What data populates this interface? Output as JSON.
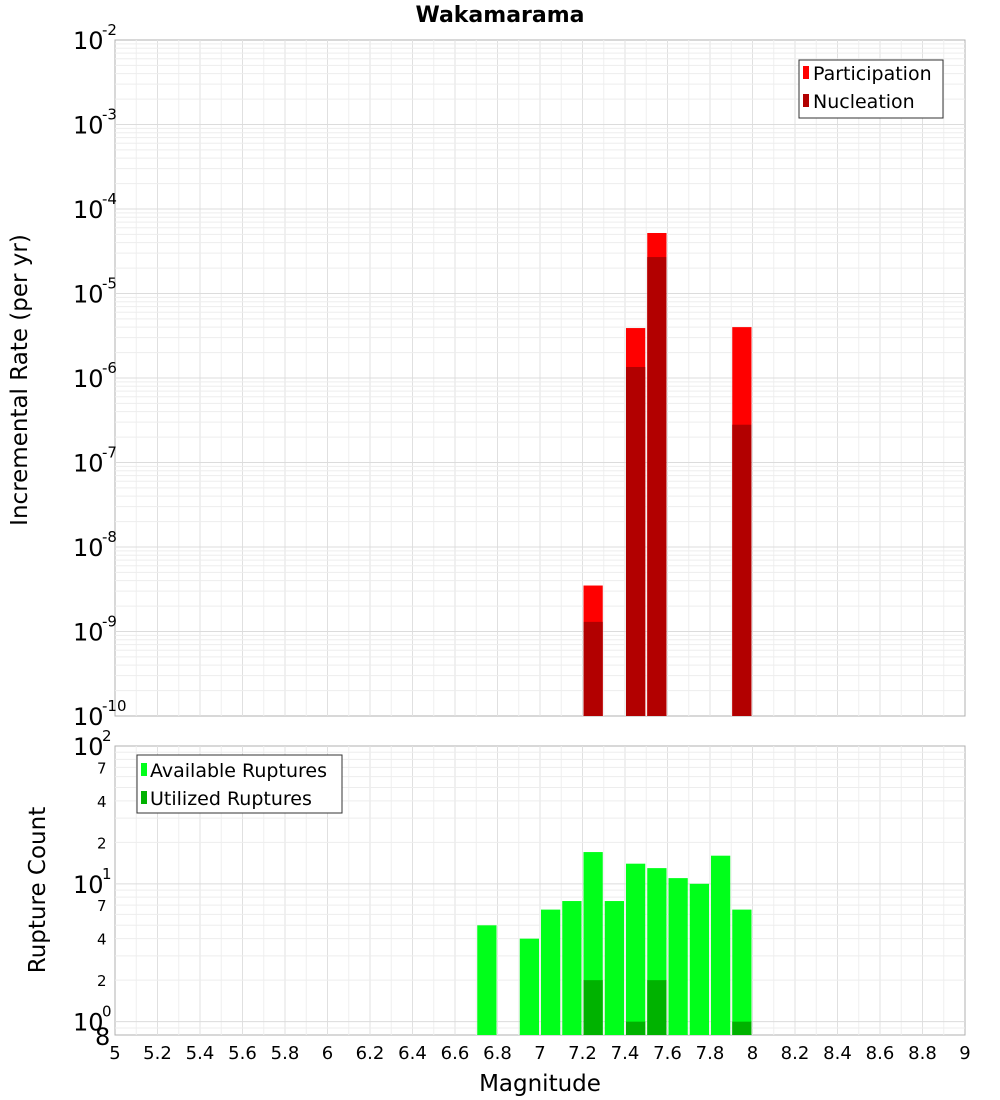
{
  "chart_data": [
    {
      "type": "bar",
      "title": "Wakamarama",
      "ylabel": "Incremental Rate (per yr)",
      "xlabel": "",
      "yscale": "log",
      "ylim": [
        1e-10,
        0.01
      ],
      "xlim": [
        5,
        9
      ],
      "bar_width": 0.1,
      "legend": {
        "position": "top-right",
        "entries": [
          "Participation",
          "Nucleation"
        ]
      },
      "series": [
        {
          "name": "Participation",
          "color": "#ff0000",
          "points": [
            {
              "x": 7.25,
              "y": 3.5e-09
            },
            {
              "x": 7.45,
              "y": 3.9e-06
            },
            {
              "x": 7.55,
              "y": 5.2e-05
            },
            {
              "x": 7.95,
              "y": 4e-06
            }
          ]
        },
        {
          "name": "Nucleation",
          "color": "#b20000",
          "points": [
            {
              "x": 7.25,
              "y": 1.3e-09
            },
            {
              "x": 7.45,
              "y": 1.35e-06
            },
            {
              "x": 7.55,
              "y": 2.7e-05
            },
            {
              "x": 7.95,
              "y": 2.8e-07
            }
          ]
        }
      ],
      "y_ticks": [
        {
          "base": "10",
          "exp": "-10"
        },
        {
          "base": "10",
          "exp": "-9"
        },
        {
          "base": "10",
          "exp": "-8"
        },
        {
          "base": "10",
          "exp": "-7"
        },
        {
          "base": "10",
          "exp": "-6"
        },
        {
          "base": "10",
          "exp": "-5"
        },
        {
          "base": "10",
          "exp": "-4"
        },
        {
          "base": "10",
          "exp": "-3"
        },
        {
          "base": "10",
          "exp": "-2"
        }
      ],
      "grid": true
    },
    {
      "type": "bar",
      "title": "",
      "ylabel": "Rupture Count",
      "xlabel": "Magnitude",
      "yscale": "log",
      "ylim": [
        0.8,
        100
      ],
      "xlim": [
        5,
        9
      ],
      "bar_width": 0.1,
      "legend": {
        "position": "top-left",
        "entries": [
          "Available Ruptures",
          "Utilized Ruptures"
        ]
      },
      "series": [
        {
          "name": "Available Ruptures",
          "color": "#00ff1a",
          "points": [
            {
              "x": 6.75,
              "y": 5
            },
            {
              "x": 6.95,
              "y": 4
            },
            {
              "x": 7.05,
              "y": 6.5
            },
            {
              "x": 7.15,
              "y": 7.5
            },
            {
              "x": 7.25,
              "y": 17
            },
            {
              "x": 7.35,
              "y": 7.5
            },
            {
              "x": 7.45,
              "y": 14
            },
            {
              "x": 7.55,
              "y": 13
            },
            {
              "x": 7.65,
              "y": 11
            },
            {
              "x": 7.75,
              "y": 10
            },
            {
              "x": 7.85,
              "y": 16
            },
            {
              "x": 7.95,
              "y": 6.5
            }
          ]
        },
        {
          "name": "Utilized Ruptures",
          "color": "#00b200",
          "points": [
            {
              "x": 7.25,
              "y": 2
            },
            {
              "x": 7.45,
              "y": 1
            },
            {
              "x": 7.55,
              "y": 2
            },
            {
              "x": 7.95,
              "y": 1
            }
          ]
        }
      ],
      "y_ticks": [
        {
          "base": "10",
          "exp": "0"
        },
        {
          "base": "10",
          "exp": "1"
        },
        {
          "base": "10",
          "exp": "2"
        }
      ],
      "y_minor_tick_labels": [
        {
          "value": 2,
          "label": "2"
        },
        {
          "value": 4,
          "label": "4"
        },
        {
          "value": 7,
          "label": "7"
        },
        {
          "value": 20,
          "label": "2"
        },
        {
          "value": 40,
          "label": "4"
        },
        {
          "value": 70,
          "label": "7"
        },
        {
          "value": 0.8,
          "label": "8"
        }
      ],
      "x_tick_labels": [
        "5",
        "5.2",
        "5.4",
        "5.6",
        "5.8",
        "6",
        "6.2",
        "6.4",
        "6.6",
        "6.8",
        "7",
        "7.2",
        "7.4",
        "7.6",
        "7.8",
        "8",
        "8.2",
        "8.4",
        "8.6",
        "8.8",
        "9"
      ],
      "grid": true
    }
  ]
}
